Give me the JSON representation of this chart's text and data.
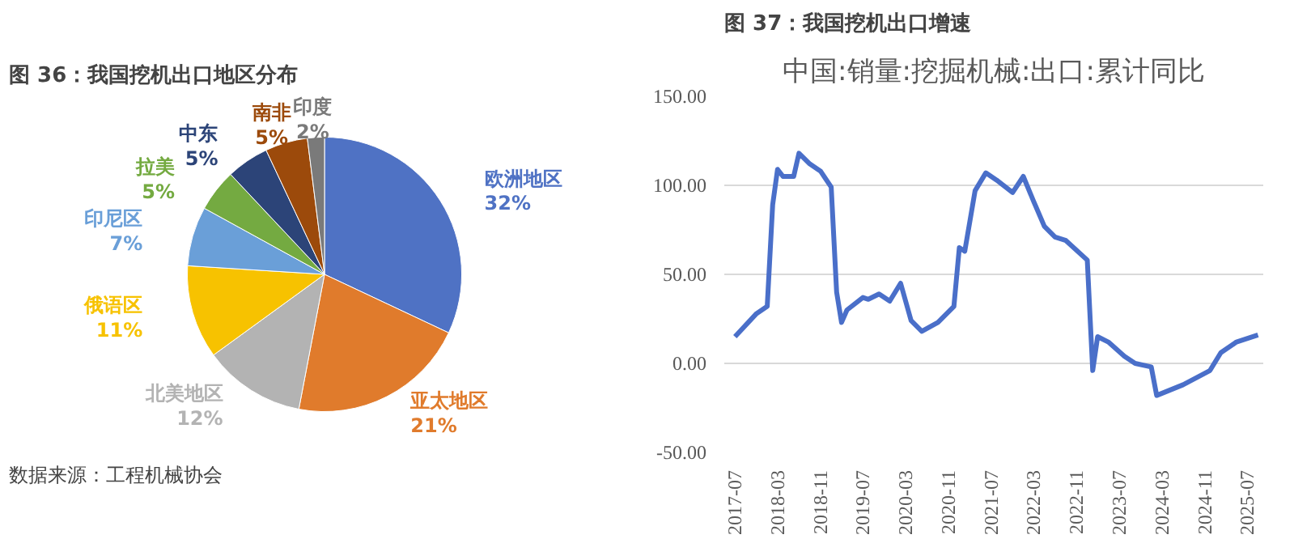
{
  "chart_data": [
    {
      "type": "pie",
      "title": "图 36：我国挖机出口地区分布",
      "categories": [
        "欧洲地区",
        "亚太地区",
        "北美地区",
        "俄语区",
        "印尼区",
        "拉美",
        "中东",
        "南非",
        "印度"
      ],
      "values": [
        32,
        21,
        12,
        11,
        7,
        5,
        5,
        5,
        2
      ],
      "value_labels": [
        "32%",
        "21%",
        "12%",
        "11%",
        "7%",
        "5%",
        "5%",
        "5%",
        "2%"
      ],
      "colors": [
        "#4f72c4",
        "#e07b2c",
        "#b3b3b3",
        "#f7c200",
        "#6a9fd8",
        "#74aa41",
        "#2c4478",
        "#9c4a0b",
        "#7a7a7a"
      ],
      "annotations": [
        "数据来源：工程机械协会"
      ]
    },
    {
      "type": "line",
      "title": "图 37：我国挖机出口增速",
      "subtitle": "中国:销量:挖掘机械:出口:累计同比",
      "x": [
        "2017-07",
        "2017-11",
        "2018-01",
        "2018-02",
        "2018-03",
        "2018-04",
        "2018-06",
        "2018-07",
        "2018-09",
        "2018-11",
        "2019-01",
        "2019-02",
        "2019-03",
        "2019-04",
        "2019-07",
        "2019-08",
        "2019-10",
        "2019-12",
        "2020-02",
        "2020-04",
        "2020-06",
        "2020-09",
        "2020-12",
        "2021-01",
        "2021-02",
        "2021-04",
        "2021-06",
        "2021-08",
        "2021-11",
        "2022-01",
        "2022-03",
        "2022-05",
        "2022-07",
        "2022-09",
        "2023-01",
        "2023-02",
        "2023-03",
        "2023-05",
        "2023-08",
        "2023-10",
        "2024-01",
        "2024-02",
        "2024-07",
        "2024-12",
        "2025-02",
        "2025-05",
        "2025-09"
      ],
      "series": [
        {
          "color": "#4a6fc9",
          "values": [
            15,
            28,
            32,
            89,
            109,
            105,
            105,
            118,
            112,
            108,
            99,
            40,
            23,
            30,
            37,
            36,
            39,
            35,
            45,
            24,
            18,
            23,
            32,
            65,
            63,
            97,
            107,
            103,
            96,
            105,
            91,
            77,
            71,
            69,
            58,
            -4,
            15,
            12,
            4,
            0,
            -2,
            -18,
            -12,
            -4,
            6,
            12,
            16
          ]
        }
      ],
      "xlim": [
        "2017-05",
        "2025-10"
      ],
      "xticks": [
        "2017-07",
        "2018-03",
        "2018-11",
        "2019-07",
        "2020-03",
        "2020-11",
        "2021-07",
        "2022-03",
        "2022-11",
        "2023-07",
        "2024-03",
        "2024-11",
        "2025-07"
      ],
      "ylim": [
        -50,
        150
      ],
      "yticks": [
        {
          "value": -50,
          "label": "-50.00"
        },
        {
          "value": 0,
          "label": "0.00"
        },
        {
          "value": 50,
          "label": "50.00"
        },
        {
          "value": 100,
          "label": "100.00"
        },
        {
          "value": 150,
          "label": "150.00"
        }
      ],
      "grid": "y",
      "marker": "none",
      "line_style": "solid"
    }
  ]
}
